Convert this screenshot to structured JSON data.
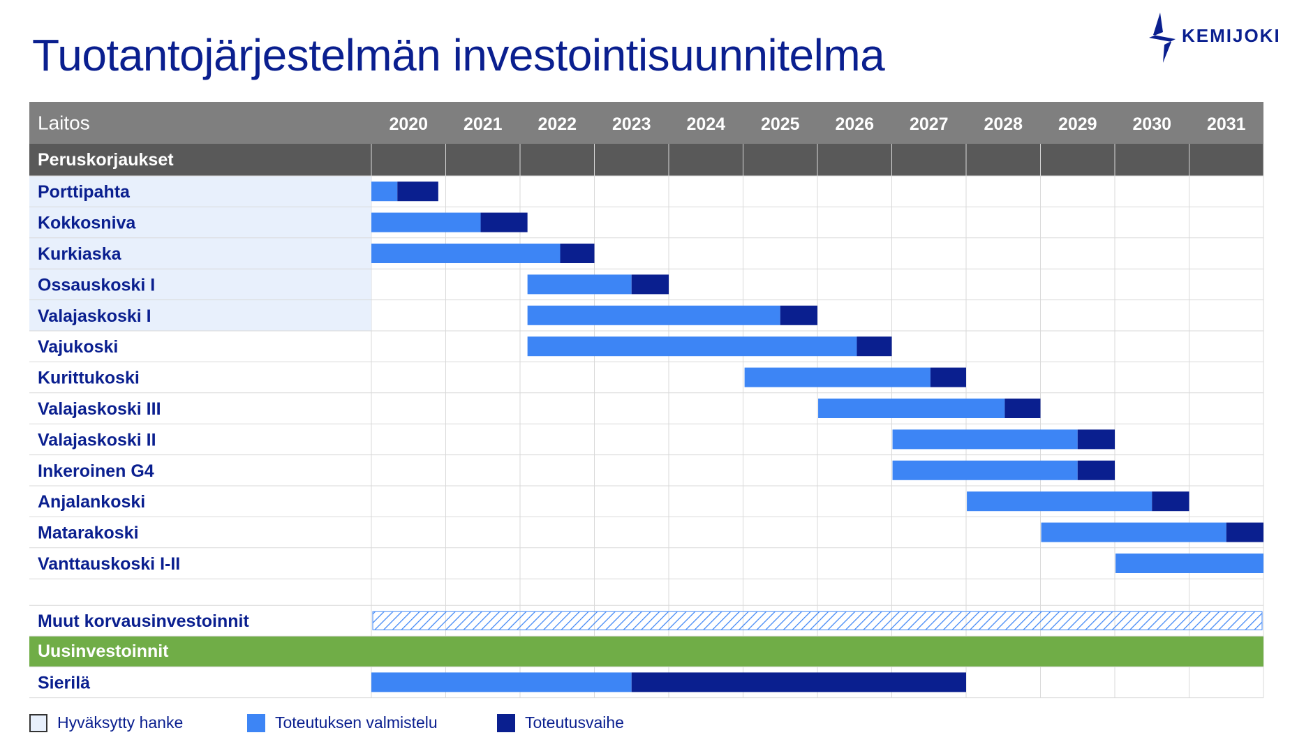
{
  "title": "Tuotantojärjestelmän investointisuunnitelma",
  "logo": {
    "text": "KEMIJOKI",
    "icon": "kemijoki-bolt-logo-icon"
  },
  "colors": {
    "title": "#0a1f8f",
    "header_bg": "#7f7f7f",
    "section_bg": "#595959",
    "green_section": "#70ad47",
    "approved_bg": "#e8f0fc",
    "preparation": "#3d85f5",
    "execution": "#0a1f8f",
    "grid": "#d9d9d9"
  },
  "legend": [
    {
      "label": "Hyväksytty hanke",
      "color": "#e8f0fc",
      "border": "#333333"
    },
    {
      "label": "Toteutuksen valmistelu",
      "color": "#3d85f5"
    },
    {
      "label": "Toteutusvaihe",
      "color": "#0a1f8f"
    }
  ],
  "chart_data": {
    "type": "gantt",
    "header_label": "Laitos",
    "years": [
      "2020",
      "2021",
      "2022",
      "2023",
      "2024",
      "2025",
      "2026",
      "2027",
      "2028",
      "2029",
      "2030",
      "2031"
    ],
    "x_range": [
      2020,
      2032
    ],
    "rows": [
      {
        "kind": "section",
        "label": "Peruskorjaukset"
      },
      {
        "kind": "task",
        "label": "Porttipahta",
        "approved": true,
        "preparation": [
          2020.0,
          2020.35
        ],
        "execution": [
          2020.35,
          2020.9
        ]
      },
      {
        "kind": "task",
        "label": "Kokkosniva",
        "approved": true,
        "preparation": [
          2020.0,
          2021.47
        ],
        "execution": [
          2021.47,
          2022.1
        ]
      },
      {
        "kind": "task",
        "label": "Kurkiaska",
        "approved": true,
        "preparation": [
          2020.0,
          2022.54
        ],
        "execution": [
          2022.54,
          2023.0
        ]
      },
      {
        "kind": "task",
        "label": "Ossauskoski I",
        "approved": true,
        "preparation": [
          2022.1,
          2023.5
        ],
        "execution": [
          2023.5,
          2024.0
        ]
      },
      {
        "kind": "task",
        "label": "Valajaskoski I",
        "approved": true,
        "preparation": [
          2022.1,
          2025.5
        ],
        "execution": [
          2025.5,
          2026.0
        ]
      },
      {
        "kind": "task",
        "label": "Vajukoski",
        "approved": false,
        "preparation": [
          2022.1,
          2026.53
        ],
        "execution": [
          2026.53,
          2027.0
        ]
      },
      {
        "kind": "task",
        "label": "Kurittukoski",
        "approved": false,
        "preparation": [
          2025.02,
          2027.52
        ],
        "execution": [
          2027.52,
          2028.0
        ]
      },
      {
        "kind": "task",
        "label": "Valajaskoski III",
        "approved": false,
        "preparation": [
          2026.01,
          2028.52
        ],
        "execution": [
          2028.52,
          2029.0
        ]
      },
      {
        "kind": "task",
        "label": "Valajaskoski II",
        "approved": false,
        "preparation": [
          2027.01,
          2029.5
        ],
        "execution": [
          2029.5,
          2030.0
        ]
      },
      {
        "kind": "task",
        "label": "Inkeroinen G4",
        "approved": false,
        "preparation": [
          2027.01,
          2029.5
        ],
        "execution": [
          2029.5,
          2030.0
        ]
      },
      {
        "kind": "task",
        "label": "Anjalankoski",
        "approved": false,
        "preparation": [
          2028.01,
          2030.5
        ],
        "execution": [
          2030.5,
          2031.0
        ]
      },
      {
        "kind": "task",
        "label": "Matarakoski",
        "approved": false,
        "preparation": [
          2029.01,
          2031.5
        ],
        "execution": [
          2031.5,
          2032.0
        ]
      },
      {
        "kind": "task",
        "label": "Vanttauskoski I-II",
        "approved": false,
        "preparation": [
          2030.01,
          2032.0
        ],
        "execution": null
      },
      {
        "kind": "spacer",
        "label": ""
      },
      {
        "kind": "ongoing",
        "label": "Muut korvausinvestoinnit",
        "span": [
          2020.0,
          2032.0
        ]
      },
      {
        "kind": "section-green",
        "label": "Uusinvestoinnit"
      },
      {
        "kind": "task",
        "label": "Sierilä",
        "approved": false,
        "preparation": [
          2020.0,
          2023.5
        ],
        "execution": [
          2023.5,
          2028.0
        ]
      }
    ]
  }
}
